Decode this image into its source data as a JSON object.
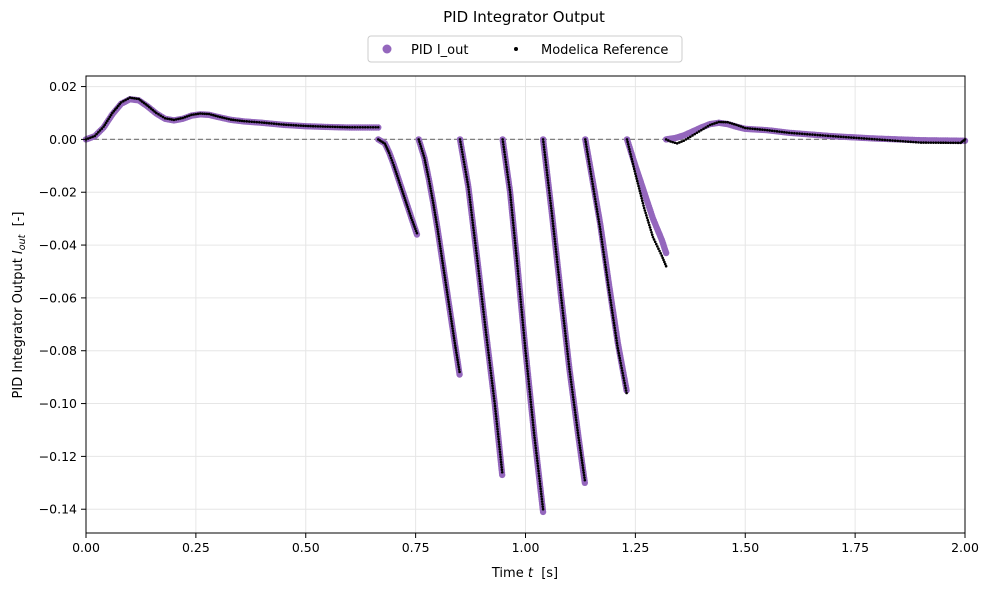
{
  "chart_data": {
    "type": "scatter",
    "title": "PID Integrator Output",
    "xlabel": "Time t  [s]",
    "ylabel": "PID Integrator Output I_out  [-]",
    "xlim": [
      0.0,
      2.0
    ],
    "ylim": [
      -0.149,
      0.024
    ],
    "xticks": [
      0.0,
      0.25,
      0.5,
      0.75,
      1.0,
      1.25,
      1.5,
      1.75,
      2.0
    ],
    "xtick_labels": [
      "0.00",
      "0.25",
      "0.50",
      "0.75",
      "1.00",
      "1.25",
      "1.50",
      "1.75",
      "2.00"
    ],
    "yticks": [
      0.02,
      0.0,
      -0.02,
      -0.04,
      -0.06,
      -0.08,
      -0.1,
      -0.12,
      -0.14
    ],
    "ytick_labels": [
      "0.02",
      "0.00",
      "−0.02",
      "−0.04",
      "−0.06",
      "−0.08",
      "−0.10",
      "−0.12",
      "−0.14"
    ],
    "grid": true,
    "legend_position": "top-center",
    "reference_line": {
      "y": 0.0,
      "style": "dashed",
      "color": "#808080"
    },
    "series": [
      {
        "name": "PID I_out",
        "color": "#9467bd",
        "marker": "large-dot",
        "segments": [
          [
            [
              0.0,
              0.0
            ],
            [
              0.02,
              0.0012
            ],
            [
              0.04,
              0.0045
            ],
            [
              0.06,
              0.0095
            ],
            [
              0.08,
              0.0135
            ],
            [
              0.1,
              0.0152
            ],
            [
              0.12,
              0.0148
            ],
            [
              0.14,
              0.0125
            ],
            [
              0.16,
              0.0098
            ],
            [
              0.18,
              0.0078
            ],
            [
              0.2,
              0.0072
            ],
            [
              0.22,
              0.0078
            ],
            [
              0.24,
              0.009
            ],
            [
              0.26,
              0.0095
            ],
            [
              0.28,
              0.0093
            ],
            [
              0.3,
              0.0085
            ],
            [
              0.33,
              0.0074
            ],
            [
              0.36,
              0.0068
            ],
            [
              0.4,
              0.0063
            ],
            [
              0.45,
              0.0055
            ],
            [
              0.5,
              0.005
            ],
            [
              0.55,
              0.0047
            ],
            [
              0.6,
              0.0045
            ],
            [
              0.665,
              0.0045
            ]
          ],
          [
            [
              0.665,
              0.0
            ],
            [
              0.68,
              -0.0015
            ],
            [
              0.69,
              -0.005
            ],
            [
              0.7,
              -0.0095
            ],
            [
              0.71,
              -0.0145
            ],
            [
              0.72,
              -0.0195
            ],
            [
              0.73,
              -0.0245
            ],
            [
              0.74,
              -0.0295
            ],
            [
              0.753,
              -0.036
            ]
          ],
          [
            [
              0.757,
              0.0
            ],
            [
              0.77,
              -0.007
            ],
            [
              0.78,
              -0.015
            ],
            [
              0.79,
              -0.024
            ],
            [
              0.8,
              -0.034
            ],
            [
              0.81,
              -0.045
            ],
            [
              0.82,
              -0.056
            ],
            [
              0.83,
              -0.067
            ],
            [
              0.84,
              -0.078
            ],
            [
              0.85,
              -0.089
            ]
          ],
          [
            [
              0.851,
              0.0
            ],
            [
              0.87,
              -0.018
            ],
            [
              0.89,
              -0.045
            ],
            [
              0.91,
              -0.073
            ],
            [
              0.93,
              -0.1
            ],
            [
              0.947,
              -0.127
            ]
          ],
          [
            [
              0.948,
              0.0
            ],
            [
              0.965,
              -0.02
            ],
            [
              0.98,
              -0.045
            ],
            [
              1.0,
              -0.08
            ],
            [
              1.02,
              -0.112
            ],
            [
              1.04,
              -0.141
            ]
          ],
          [
            [
              1.04,
              0.0
            ],
            [
              1.06,
              -0.028
            ],
            [
              1.08,
              -0.058
            ],
            [
              1.1,
              -0.087
            ],
            [
              1.12,
              -0.112
            ],
            [
              1.135,
              -0.13
            ]
          ],
          [
            [
              1.136,
              0.0
            ],
            [
              1.15,
              -0.013
            ],
            [
              1.17,
              -0.032
            ],
            [
              1.19,
              -0.055
            ],
            [
              1.21,
              -0.077
            ],
            [
              1.23,
              -0.095
            ]
          ],
          [
            [
              1.231,
              0.0
            ],
            [
              1.25,
              -0.01
            ],
            [
              1.27,
              -0.02
            ],
            [
              1.29,
              -0.03
            ],
            [
              1.31,
              -0.038
            ],
            [
              1.32,
              -0.043
            ]
          ],
          [
            [
              1.32,
              0.0
            ],
            [
              1.34,
              0.0005
            ],
            [
              1.36,
              0.0015
            ],
            [
              1.38,
              0.003
            ],
            [
              1.4,
              0.0045
            ],
            [
              1.42,
              0.0058
            ],
            [
              1.44,
              0.0063
            ],
            [
              1.46,
              0.0058
            ],
            [
              1.48,
              0.0048
            ],
            [
              1.5,
              0.004
            ],
            [
              1.55,
              0.0035
            ],
            [
              1.6,
              0.0025
            ],
            [
              1.7,
              0.0012
            ],
            [
              1.8,
              0.0003
            ],
            [
              1.9,
              -0.0003
            ],
            [
              2.0,
              -0.0005
            ]
          ]
        ]
      },
      {
        "name": "Modelica Reference",
        "color": "#000000",
        "marker": "small-dot",
        "segments": [
          [
            [
              0.0,
              0.0
            ],
            [
              0.02,
              0.0013
            ],
            [
              0.04,
              0.0048
            ],
            [
              0.06,
              0.01
            ],
            [
              0.08,
              0.014
            ],
            [
              0.1,
              0.0158
            ],
            [
              0.12,
              0.0153
            ],
            [
              0.14,
              0.0128
            ],
            [
              0.16,
              0.01
            ],
            [
              0.18,
              0.008
            ],
            [
              0.2,
              0.0074
            ],
            [
              0.22,
              0.0081
            ],
            [
              0.24,
              0.0093
            ],
            [
              0.26,
              0.0098
            ],
            [
              0.28,
              0.0096
            ],
            [
              0.3,
              0.0087
            ],
            [
              0.33,
              0.0075
            ],
            [
              0.36,
              0.0069
            ],
            [
              0.4,
              0.0064
            ],
            [
              0.45,
              0.0056
            ],
            [
              0.5,
              0.0051
            ],
            [
              0.55,
              0.0048
            ],
            [
              0.6,
              0.0046
            ],
            [
              0.665,
              0.0046
            ]
          ],
          [
            [
              0.665,
              0.0
            ],
            [
              0.68,
              -0.0016
            ],
            [
              0.69,
              -0.0052
            ],
            [
              0.7,
              -0.0097
            ],
            [
              0.71,
              -0.0147
            ],
            [
              0.72,
              -0.0197
            ],
            [
              0.73,
              -0.0247
            ],
            [
              0.74,
              -0.0297
            ],
            [
              0.753,
              -0.0355
            ]
          ],
          [
            [
              0.757,
              0.0
            ],
            [
              0.77,
              -0.007
            ],
            [
              0.78,
              -0.015
            ],
            [
              0.79,
              -0.024
            ],
            [
              0.8,
              -0.034
            ],
            [
              0.81,
              -0.045
            ],
            [
              0.82,
              -0.056
            ],
            [
              0.83,
              -0.067
            ],
            [
              0.84,
              -0.078
            ],
            [
              0.85,
              -0.088
            ]
          ],
          [
            [
              0.851,
              0.0
            ],
            [
              0.87,
              -0.018
            ],
            [
              0.89,
              -0.045
            ],
            [
              0.91,
              -0.073
            ],
            [
              0.93,
              -0.1
            ],
            [
              0.947,
              -0.126
            ]
          ],
          [
            [
              0.948,
              0.0
            ],
            [
              0.965,
              -0.02
            ],
            [
              0.98,
              -0.045
            ],
            [
              1.0,
              -0.08
            ],
            [
              1.02,
              -0.112
            ],
            [
              1.04,
              -0.14
            ]
          ],
          [
            [
              1.04,
              0.0
            ],
            [
              1.06,
              -0.028
            ],
            [
              1.08,
              -0.058
            ],
            [
              1.1,
              -0.087
            ],
            [
              1.12,
              -0.112
            ],
            [
              1.135,
              -0.129
            ]
          ],
          [
            [
              1.136,
              0.0
            ],
            [
              1.15,
              -0.014
            ],
            [
              1.17,
              -0.034
            ],
            [
              1.19,
              -0.057
            ],
            [
              1.21,
              -0.079
            ],
            [
              1.23,
              -0.096
            ]
          ],
          [
            [
              1.231,
              0.0
            ],
            [
              1.25,
              -0.013
            ],
            [
              1.27,
              -0.026
            ],
            [
              1.29,
              -0.037
            ],
            [
              1.31,
              -0.044
            ],
            [
              1.32,
              -0.048
            ]
          ],
          [
            [
              1.32,
              0.0
            ],
            [
              1.33,
              -0.0008
            ],
            [
              1.345,
              -0.0015
            ],
            [
              1.36,
              -0.0005
            ],
            [
              1.38,
              0.0015
            ],
            [
              1.4,
              0.0035
            ],
            [
              1.42,
              0.0055
            ],
            [
              1.44,
              0.0066
            ],
            [
              1.46,
              0.0065
            ],
            [
              1.48,
              0.0055
            ],
            [
              1.5,
              0.0043
            ],
            [
              1.55,
              0.0035
            ],
            [
              1.6,
              0.0025
            ],
            [
              1.7,
              0.0012
            ],
            [
              1.8,
              0.0
            ],
            [
              1.9,
              -0.0012
            ],
            [
              1.99,
              -0.0013
            ],
            [
              2.0,
              0.0
            ]
          ]
        ]
      }
    ]
  }
}
